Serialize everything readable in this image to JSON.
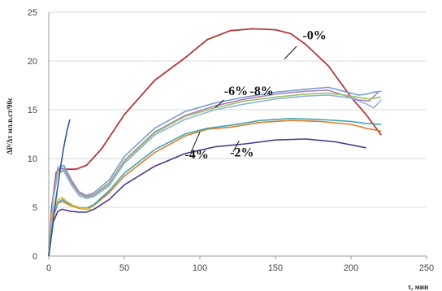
{
  "chart_data": {
    "type": "line",
    "title": "",
    "xlabel": "τ, мин",
    "ylabel": "ΔP/Δτ мл.в.ст/90с",
    "xlim": [
      0,
      250
    ],
    "ylim": [
      0,
      25
    ],
    "xticks": [
      "0",
      "50",
      "100",
      "150",
      "200",
      "250"
    ],
    "yticks": [
      "0",
      "5",
      "10",
      "15",
      "20",
      "25"
    ],
    "grid": {
      "y": true,
      "x": false
    },
    "annotations": [
      {
        "label": "-0%",
        "x": 168,
        "y": 22.2
      },
      {
        "label": "-6%",
        "x": 116,
        "y": 16.5
      },
      {
        "label": "-8%",
        "x": 133,
        "y": 16.5
      },
      {
        "label": "-4%",
        "x": 90,
        "y": 10.0
      },
      {
        "label": "-2%",
        "x": 120,
        "y": 10.2
      }
    ],
    "series": [
      {
        "color": "#b03a38",
        "x": [
          0,
          2,
          5,
          8,
          12,
          18,
          25,
          35,
          50,
          70,
          90,
          105,
          120,
          135,
          150,
          160,
          170,
          185,
          200,
          210,
          220
        ],
        "y": [
          0,
          5,
          8.6,
          9.0,
          8.9,
          8.9,
          9.3,
          11,
          14.5,
          18,
          20.3,
          22.2,
          23.1,
          23.3,
          23.2,
          22.8,
          21.7,
          19.5,
          16.3,
          14.5,
          12.4
        ]
      },
      {
        "color": "#7aa0cc",
        "x": [
          0,
          3,
          6,
          10,
          15,
          20,
          25,
          30,
          40,
          50,
          70,
          90,
          110,
          130,
          150,
          170,
          185,
          195,
          205,
          210,
          215,
          220
        ],
        "y": [
          0,
          6,
          9.1,
          9.3,
          7.8,
          6.6,
          6.2,
          6.5,
          7.8,
          10.2,
          13.1,
          14.8,
          15.7,
          16.3,
          16.8,
          17.1,
          17.3,
          16.9,
          16.5,
          16.6,
          16.8,
          16.9
        ]
      },
      {
        "color": "#b07eb8",
        "x": [
          0,
          3,
          6,
          10,
          15,
          20,
          25,
          30,
          40,
          50,
          70,
          90,
          110,
          130,
          150,
          170,
          185,
          195,
          205,
          212,
          218
        ],
        "y": [
          0,
          6,
          8.9,
          9.0,
          7.6,
          6.5,
          6.1,
          6.3,
          7.5,
          9.8,
          12.7,
          14.4,
          15.4,
          16.1,
          16.6,
          16.9,
          17.0,
          16.5,
          16.0,
          15.9,
          16.8
        ]
      },
      {
        "color": "#9ac36a",
        "x": [
          0,
          3,
          6,
          10,
          15,
          20,
          25,
          30,
          40,
          50,
          70,
          90,
          110,
          130,
          150,
          170,
          185,
          200,
          212,
          220
        ],
        "y": [
          0,
          6,
          8.7,
          8.8,
          7.4,
          6.3,
          6.0,
          6.2,
          7.4,
          9.7,
          12.6,
          14.3,
          15.2,
          15.9,
          16.3,
          16.6,
          16.7,
          16.4,
          16.1,
          16.3
        ]
      },
      {
        "color": "#8fb0e0",
        "x": [
          0,
          3,
          6,
          10,
          15,
          20,
          25,
          30,
          40,
          50,
          70,
          90,
          110,
          130,
          150,
          170,
          185,
          200,
          210,
          215,
          220
        ],
        "y": [
          0,
          5.8,
          8.5,
          8.7,
          7.3,
          6.2,
          5.9,
          6.1,
          7.2,
          9.5,
          12.4,
          14.0,
          15.0,
          15.6,
          16.1,
          16.4,
          16.5,
          16.2,
          15.6,
          15.2,
          16.0
        ]
      },
      {
        "color": "#e07a2e",
        "x": [
          0,
          3,
          6,
          9,
          14,
          20,
          25,
          30,
          40,
          50,
          70,
          90,
          105,
          120,
          140,
          160,
          180,
          200,
          210,
          220
        ],
        "y": [
          0,
          4,
          5.4,
          5.6,
          5.2,
          4.9,
          4.8,
          5.2,
          6.5,
          8.2,
          10.6,
          12.3,
          13.0,
          13.2,
          13.7,
          13.9,
          13.8,
          13.5,
          13.1,
          12.8
        ]
      },
      {
        "color": "#3fa7b0",
        "x": [
          0,
          3,
          6,
          9,
          14,
          20,
          25,
          30,
          40,
          50,
          70,
          90,
          105,
          120,
          140,
          160,
          180,
          200,
          210,
          220
        ],
        "y": [
          0,
          4.2,
          5.5,
          5.8,
          5.3,
          5.0,
          4.9,
          5.3,
          6.7,
          8.5,
          10.9,
          12.5,
          13.1,
          13.4,
          13.9,
          14.1,
          14.0,
          13.8,
          13.6,
          13.5
        ]
      },
      {
        "color": "#4b3a8a",
        "x": [
          0,
          3,
          6,
          9,
          14,
          20,
          25,
          30,
          40,
          50,
          70,
          90,
          110,
          130,
          150,
          170,
          190,
          200,
          210
        ],
        "y": [
          0,
          3.5,
          4.6,
          4.8,
          4.6,
          4.5,
          4.5,
          4.8,
          5.8,
          7.3,
          9.2,
          10.5,
          11.2,
          11.5,
          11.9,
          12.0,
          11.7,
          11.4,
          11.1
        ]
      },
      {
        "color": "#d4c43a",
        "x": [
          0,
          3,
          6,
          9,
          12,
          16,
          22,
          28
        ],
        "y": [
          0,
          4.5,
          5.8,
          6.0,
          5.6,
          5.2,
          4.9,
          4.8
        ]
      },
      {
        "color": "#2a5aa8",
        "x": [
          0,
          2,
          4,
          6,
          8,
          10,
          12,
          14
        ],
        "y": [
          0,
          2.5,
          5,
          7.2,
          9.3,
          11.2,
          12.8,
          14
        ]
      }
    ]
  }
}
